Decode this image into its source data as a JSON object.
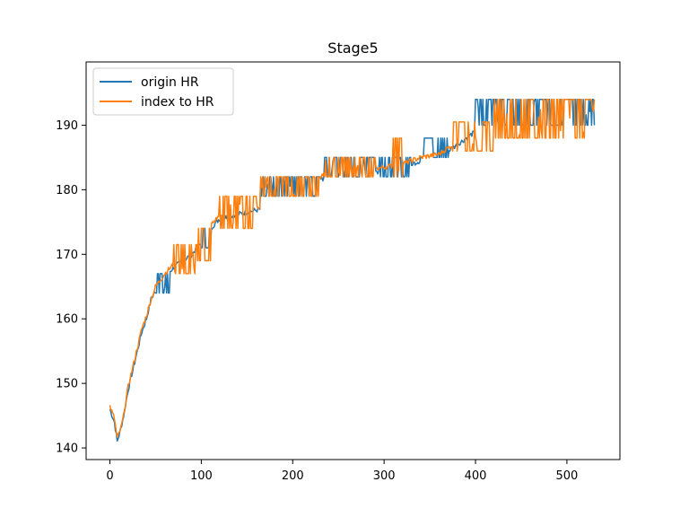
{
  "chart_data": {
    "type": "line",
    "title": "Stage5",
    "xlabel": "",
    "ylabel": "",
    "xlim": [
      -26,
      558
    ],
    "ylim": [
      138.2,
      199.8
    ],
    "grid": false,
    "legend_position": "top-left",
    "xticks": [
      0,
      100,
      200,
      300,
      400,
      500
    ],
    "yticks": [
      140,
      150,
      160,
      170,
      180,
      190
    ],
    "series": [
      {
        "name": "origin HR",
        "color": "#1f77b4",
        "base": [
          [
            0,
            146
          ],
          [
            5,
            144
          ],
          [
            8,
            141
          ],
          [
            12,
            143
          ],
          [
            15,
            145
          ],
          [
            20,
            149
          ],
          [
            25,
            152
          ],
          [
            30,
            155
          ],
          [
            35,
            158
          ],
          [
            40,
            160
          ],
          [
            45,
            163
          ],
          [
            50,
            164.5
          ],
          [
            55,
            165.5
          ],
          [
            60,
            166.5
          ],
          [
            70,
            168
          ],
          [
            80,
            169
          ],
          [
            90,
            170
          ],
          [
            100,
            172
          ],
          [
            110,
            174
          ],
          [
            120,
            175.5
          ],
          [
            140,
            176.2
          ],
          [
            165,
            177
          ],
          [
            170,
            180
          ],
          [
            180,
            180.5
          ],
          [
            200,
            181
          ],
          [
            210,
            181
          ],
          [
            220,
            180
          ],
          [
            235,
            182
          ],
          [
            250,
            182
          ],
          [
            265,
            183
          ],
          [
            280,
            182.5
          ],
          [
            300,
            183
          ],
          [
            320,
            183.5
          ],
          [
            340,
            184.5
          ],
          [
            360,
            185
          ],
          [
            380,
            187
          ],
          [
            400,
            189
          ],
          [
            420,
            190.5
          ],
          [
            440,
            191.5
          ],
          [
            460,
            191.8
          ],
          [
            480,
            192
          ],
          [
            500,
            192
          ],
          [
            520,
            192
          ],
          [
            530,
            192
          ]
        ],
        "bands": [
          [
            50,
            65,
            164,
            167
          ],
          [
            100,
            110,
            171,
            174
          ],
          [
            165,
            230,
            179,
            182
          ],
          [
            235,
            290,
            182,
            185
          ],
          [
            295,
            330,
            182,
            185
          ],
          [
            340,
            370,
            185,
            188
          ],
          [
            400,
            530,
            190,
            194
          ]
        ]
      },
      {
        "name": "index to HR",
        "color": "#ff7f0e",
        "base": [
          [
            0,
            146.5
          ],
          [
            5,
            144.5
          ],
          [
            8,
            141.5
          ],
          [
            12,
            143
          ],
          [
            15,
            145
          ],
          [
            20,
            149.5
          ],
          [
            25,
            152.5
          ],
          [
            30,
            155.5
          ],
          [
            35,
            158.5
          ],
          [
            40,
            160.5
          ],
          [
            45,
            163
          ],
          [
            50,
            165
          ],
          [
            55,
            166
          ],
          [
            60,
            167
          ],
          [
            70,
            168.5
          ],
          [
            80,
            169.5
          ],
          [
            90,
            170.5
          ],
          [
            100,
            172.5
          ],
          [
            110,
            174.5
          ],
          [
            120,
            176
          ],
          [
            140,
            176.5
          ],
          [
            165,
            177.5
          ],
          [
            170,
            180.5
          ],
          [
            180,
            181
          ],
          [
            200,
            181.5
          ],
          [
            210,
            181
          ],
          [
            220,
            180.5
          ],
          [
            235,
            182.5
          ],
          [
            250,
            182.5
          ],
          [
            265,
            183.5
          ],
          [
            280,
            183
          ],
          [
            300,
            183.5
          ],
          [
            320,
            184
          ],
          [
            340,
            185
          ],
          [
            360,
            185.5
          ],
          [
            380,
            187.5
          ],
          [
            400,
            189.5
          ],
          [
            420,
            191
          ],
          [
            440,
            192
          ],
          [
            460,
            192
          ],
          [
            480,
            192
          ],
          [
            500,
            192
          ],
          [
            520,
            192
          ],
          [
            530,
            192
          ]
        ],
        "bands": [
          [
            70,
            95,
            167,
            171.5
          ],
          [
            95,
            110,
            169,
            174
          ],
          [
            120,
            160,
            174,
            179
          ],
          [
            165,
            230,
            179,
            182
          ],
          [
            235,
            290,
            182,
            185
          ],
          [
            265,
            275,
            182,
            188
          ],
          [
            310,
            320,
            182,
            188
          ],
          [
            375,
            420,
            186,
            190.5
          ],
          [
            420,
            530,
            188,
            194
          ]
        ]
      }
    ]
  }
}
